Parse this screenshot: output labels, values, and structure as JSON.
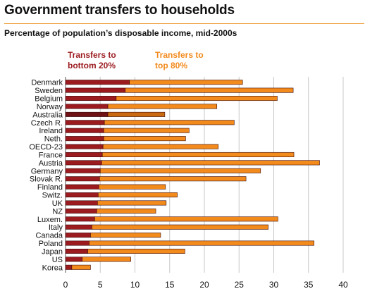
{
  "page": {
    "title": "Government transfers to households",
    "subtitle": "Percentage of population’s disposable income, mid-2000s"
  },
  "colors": {
    "accent_rule": "#f0a040",
    "bottom": "#9b1b1f",
    "bottom_dark": "#6e1215",
    "top": "#f28a1c",
    "top_dark": "#c96a10",
    "grid": "#c8c8c8",
    "axis": "#555555"
  },
  "chart_data": {
    "type": "bar",
    "orientation": "horizontal",
    "stacked": true,
    "title": "Government transfers to households",
    "subtitle": "Percentage of population’s disposable income, mid-2000s",
    "xlabel": "",
    "ylabel": "",
    "xlim": [
      0,
      40
    ],
    "xticks": [
      0,
      5,
      10,
      15,
      20,
      25,
      30,
      35,
      40
    ],
    "grid": "vertical",
    "legend_placement": "top",
    "categories": [
      "Denmark",
      "Sweden",
      "Belgium",
      "Norway",
      "Australia",
      "Czech R.",
      "Ireland",
      "Neth.",
      "OECD-23",
      "France",
      "Austria",
      "Germany",
      "Slovak R.",
      "Finland",
      "Switz.",
      "UK",
      "NZ",
      "Luxem.",
      "Italy",
      "Canada",
      "Poland",
      "Japan",
      "US",
      "Korea"
    ],
    "highlight_categories": [
      "Australia"
    ],
    "series": [
      {
        "name": "Transfers to bottom 20%",
        "legend_lines": [
          "Transfers to",
          "bottom 20%"
        ],
        "color": "#9b1b1f",
        "values": [
          9.2,
          8.6,
          7.3,
          6.1,
          6.1,
          5.6,
          5.5,
          5.5,
          5.4,
          5.3,
          5.2,
          5.0,
          4.9,
          4.8,
          4.7,
          4.6,
          4.5,
          4.2,
          3.8,
          3.6,
          3.4,
          3.2,
          2.4,
          0.9
        ]
      },
      {
        "name": "Transfers to top 80%",
        "legend_lines": [
          "Transfers to",
          "top 80%"
        ],
        "color": "#f28a1c",
        "values": [
          16.3,
          24.2,
          23.2,
          15.7,
          8.2,
          18.7,
          12.3,
          11.8,
          16.6,
          27.6,
          31.4,
          23.1,
          21.1,
          9.6,
          11.4,
          9.9,
          8.5,
          26.4,
          25.4,
          10.1,
          32.4,
          14.0,
          7.0,
          2.7
        ]
      }
    ]
  }
}
